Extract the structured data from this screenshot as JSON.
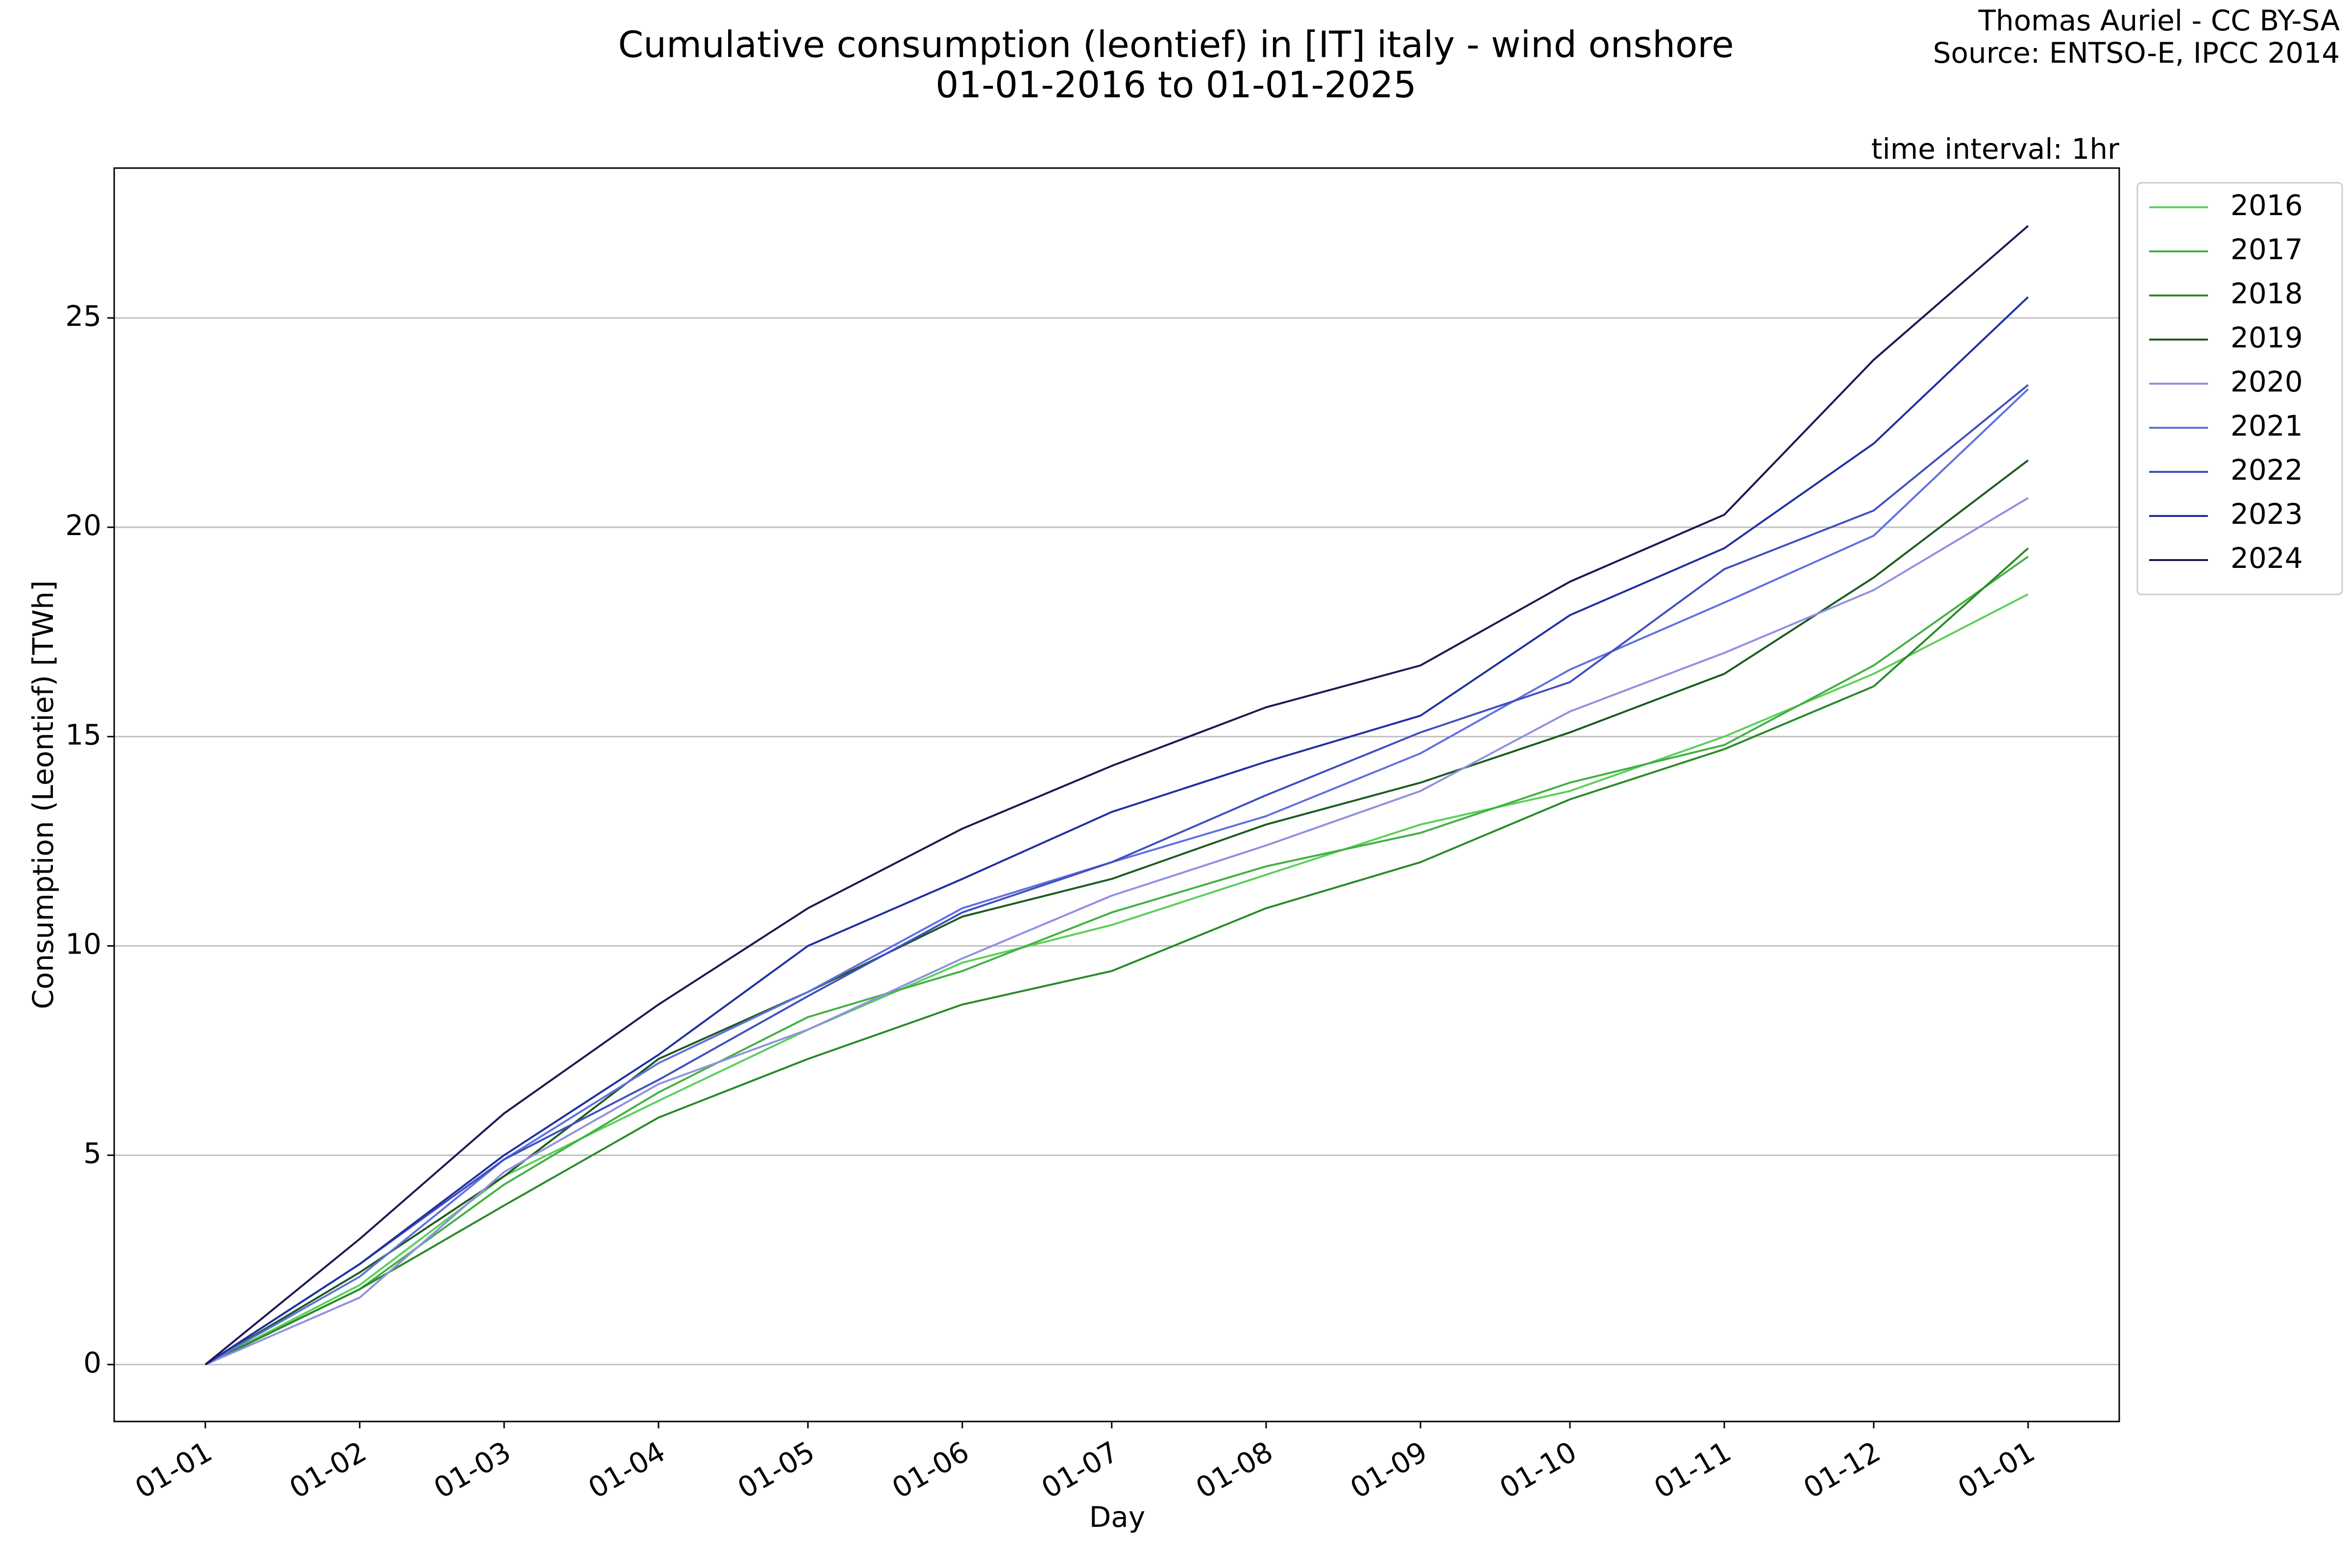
{
  "chart_data": {
    "type": "line",
    "title": "Cumulative consumption (leontief) in [IT] italy - wind onshore",
    "subtitle": "01-01-2016 to 01-01-2025",
    "credits": [
      "Thomas Auriel - CC BY-SA",
      "Source: ENTSO-E, IPCC 2014"
    ],
    "annotation": "time interval: 1hr",
    "x_label": "Day",
    "y_label": "Consumption (Leontief) [TWh]",
    "x": [
      0,
      31,
      60,
      91,
      121,
      152,
      182,
      213,
      244,
      274,
      305,
      335,
      366
    ],
    "xlim": [
      -18.3,
      384.3
    ],
    "xticks": [
      {
        "value": 0,
        "label": "01-01"
      },
      {
        "value": 31,
        "label": "01-02"
      },
      {
        "value": 60,
        "label": "01-03"
      },
      {
        "value": 91,
        "label": "01-04"
      },
      {
        "value": 121,
        "label": "01-05"
      },
      {
        "value": 152,
        "label": "01-06"
      },
      {
        "value": 182,
        "label": "01-07"
      },
      {
        "value": 213,
        "label": "01-08"
      },
      {
        "value": 244,
        "label": "01-09"
      },
      {
        "value": 274,
        "label": "01-10"
      },
      {
        "value": 305,
        "label": "01-11"
      },
      {
        "value": 335,
        "label": "01-12"
      },
      {
        "value": 366,
        "label": "01-01"
      }
    ],
    "ylim": [
      -1.36,
      28.58
    ],
    "yticks": [
      0,
      5,
      10,
      15,
      20,
      25
    ],
    "grid": true,
    "legend": "outside-right",
    "series": [
      {
        "name": "2016",
        "color": "#5ccf5c",
        "values": [
          0,
          1.9,
          4.5,
          6.3,
          8.0,
          9.6,
          10.5,
          11.7,
          12.9,
          13.7,
          15.0,
          16.5,
          18.4
        ]
      },
      {
        "name": "2017",
        "color": "#43b043",
        "values": [
          0,
          1.8,
          4.3,
          6.5,
          8.3,
          9.4,
          10.8,
          11.9,
          12.7,
          13.9,
          14.8,
          16.7,
          19.3
        ]
      },
      {
        "name": "2018",
        "color": "#2a8a2a",
        "values": [
          0,
          1.8,
          3.8,
          5.9,
          7.3,
          8.6,
          9.4,
          10.9,
          12.0,
          13.5,
          14.7,
          16.2,
          19.5
        ]
      },
      {
        "name": "2019",
        "color": "#1e5a1e",
        "values": [
          0,
          2.2,
          4.5,
          7.3,
          8.9,
          10.7,
          11.6,
          12.9,
          13.9,
          15.1,
          16.5,
          18.8,
          21.6
        ]
      },
      {
        "name": "2020",
        "color": "#9090e0",
        "values": [
          0,
          1.6,
          4.6,
          6.7,
          8.0,
          9.7,
          11.2,
          12.4,
          13.7,
          15.6,
          17.0,
          18.5,
          20.7
        ]
      },
      {
        "name": "2021",
        "color": "#6070e0",
        "values": [
          0,
          2.1,
          4.9,
          7.2,
          8.9,
          10.9,
          12.0,
          13.1,
          14.6,
          16.6,
          18.2,
          19.8,
          23.3
        ]
      },
      {
        "name": "2022",
        "color": "#4050c0",
        "values": [
          0,
          2.4,
          4.9,
          6.8,
          8.8,
          10.8,
          12.0,
          13.6,
          15.1,
          16.3,
          19.0,
          20.4,
          23.4
        ]
      },
      {
        "name": "2023",
        "color": "#2030a0",
        "values": [
          0,
          2.4,
          5.0,
          7.4,
          10.0,
          11.6,
          13.2,
          14.4,
          15.5,
          17.9,
          19.5,
          22.0,
          25.5
        ]
      },
      {
        "name": "2024",
        "color": "#1a1a50",
        "values": [
          0,
          3.0,
          6.0,
          8.6,
          10.9,
          12.8,
          14.3,
          15.7,
          16.7,
          18.7,
          20.3,
          24.0,
          27.2
        ]
      }
    ]
  }
}
